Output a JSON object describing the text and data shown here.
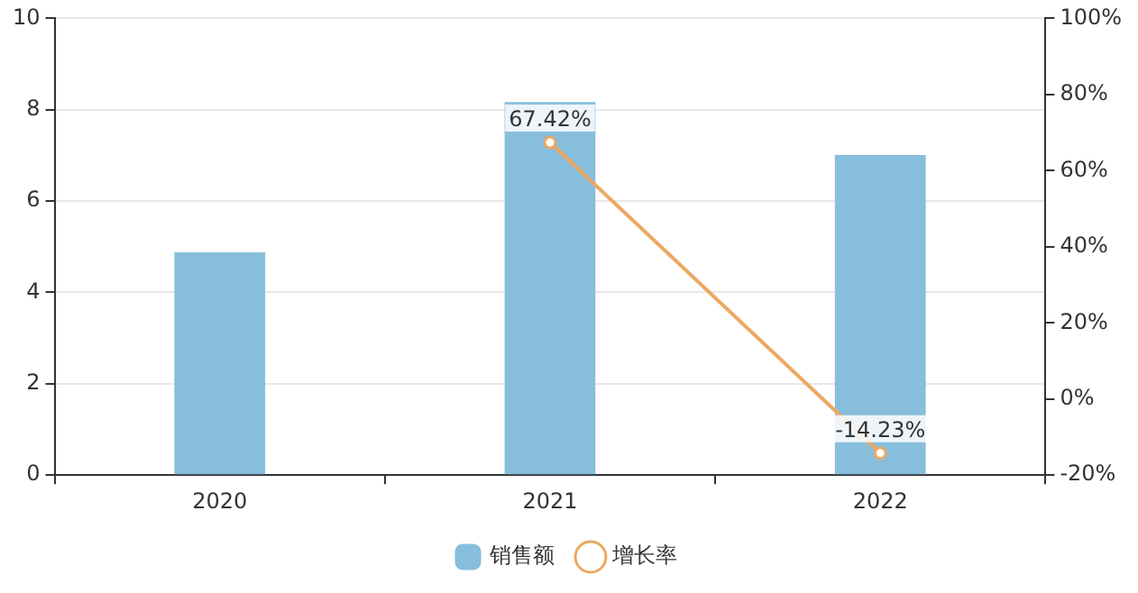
{
  "chart_data": {
    "type": "bar",
    "categories": [
      "2020",
      "2021",
      "2022"
    ],
    "series": [
      {
        "name": "销售额",
        "color": "#87bedc",
        "values": [
          4.88,
          8.17,
          7.01
        ]
      },
      {
        "name": "增长率",
        "type": "line",
        "color": "#eca862",
        "axis": "y2",
        "marker": "circle",
        "values": [
          null,
          67.42,
          -14.23
        ],
        "value_labels": [
          null,
          "67.42%",
          "-14.23%"
        ]
      }
    ],
    "ylim": [
      0,
      10
    ],
    "yticks": [
      0,
      2,
      4,
      6,
      8,
      10
    ],
    "y2lim": [
      -20,
      100
    ],
    "y2ticks": [
      {
        "value": -20,
        "label": "-20%"
      },
      {
        "value": 0,
        "label": "0%"
      },
      {
        "value": 20,
        "label": "20%"
      },
      {
        "value": 40,
        "label": "40%"
      },
      {
        "value": 60,
        "label": "60%"
      },
      {
        "value": 80,
        "label": "80%"
      },
      {
        "value": 100,
        "label": "100%"
      }
    ],
    "grid": "y",
    "legend": "bottom"
  }
}
